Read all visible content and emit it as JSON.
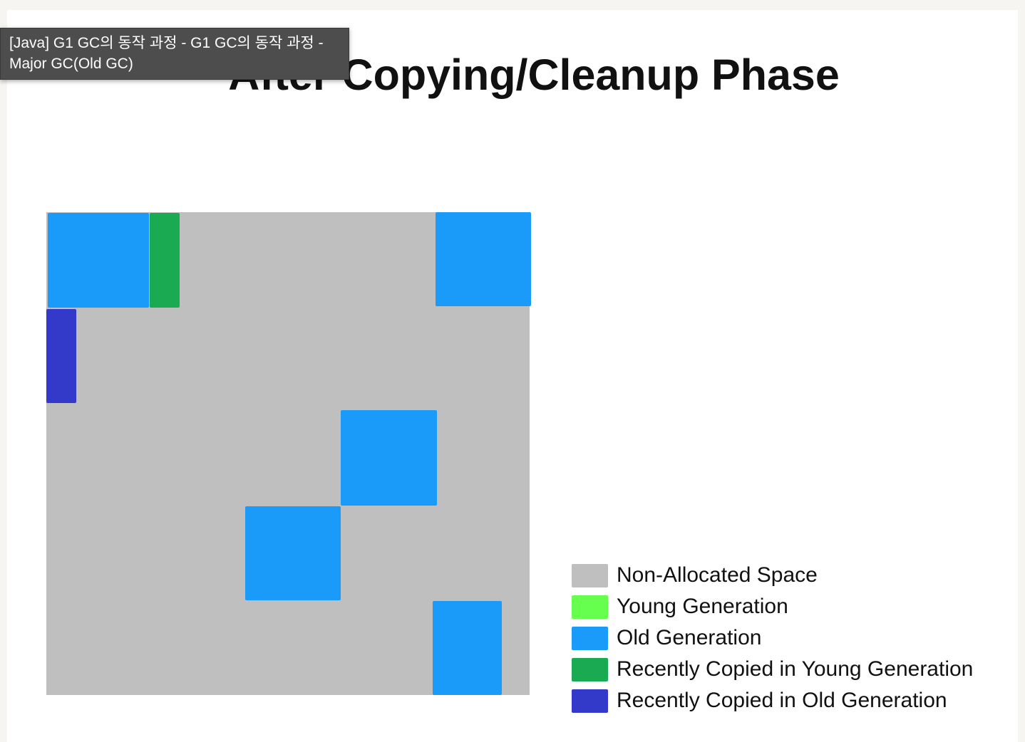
{
  "tooltip": {
    "line1": "[Java] G1 GC의 동작 과정 - G1 GC의 동작 과정 -",
    "line2": "Major GC(Old GC)"
  },
  "diagram": {
    "title": "After Copying/Cleanup Phase"
  },
  "colors": {
    "non_allocated": "#bfbfbf",
    "young": "#66ff4d",
    "old": "#1a9bfa",
    "recent_young": "#1aab52",
    "recent_old": "#3339c9"
  },
  "legend": [
    {
      "label": "Non-Allocated Space",
      "color": "#bfbfbf",
      "icon": "gray-swatch"
    },
    {
      "label": "Young Generation",
      "color": "#66ff4d",
      "icon": "light-green-swatch"
    },
    {
      "label": "Old Generation",
      "color": "#1a9bfa",
      "icon": "blue-swatch"
    },
    {
      "label": "Recently Copied in Young Generation",
      "color": "#1aab52",
      "icon": "green-swatch"
    },
    {
      "label": "Recently Copied in Old Generation",
      "color": "#3339c9",
      "icon": "indigo-swatch"
    }
  ]
}
